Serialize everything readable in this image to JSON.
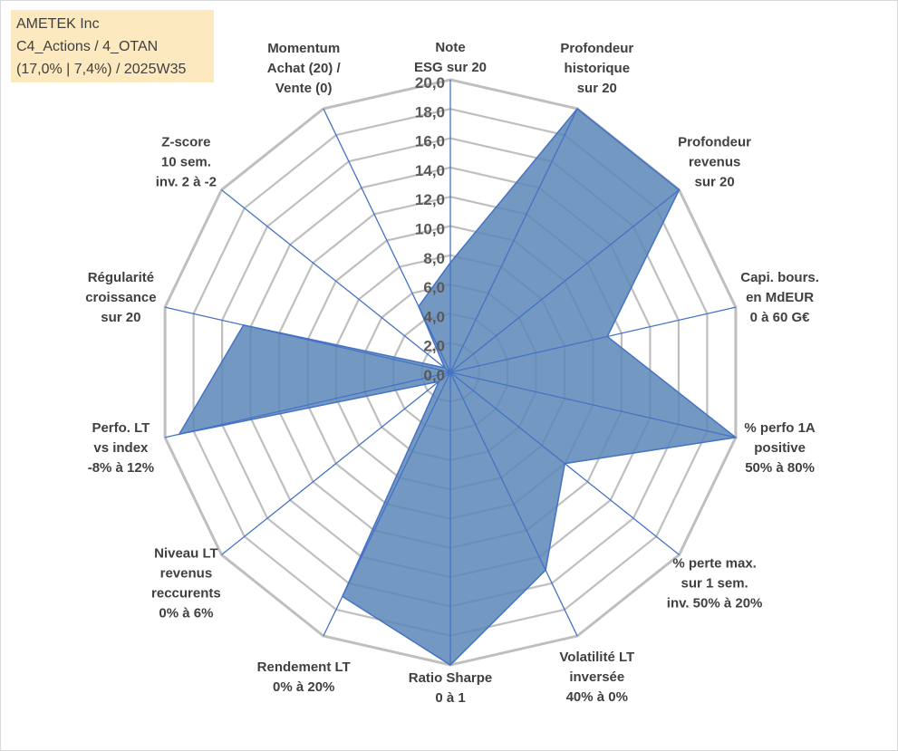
{
  "info": {
    "company": "AMETEK Inc",
    "category": "C4_Actions / 4_OTAN",
    "stats": "(17,0% | 7,4%) / 2025W35"
  },
  "chart_data": {
    "type": "radar",
    "r_min": 0,
    "r_max": 20,
    "r_step": 2,
    "tick_labels": [
      "0,0",
      "2,0",
      "4,0",
      "6,0",
      "8,0",
      "10,0",
      "12,0",
      "14,0",
      "16,0",
      "18,0",
      "20,0"
    ],
    "axes": [
      [
        "Note",
        "ESG sur 20"
      ],
      [
        "Profondeur",
        "historique",
        "sur 20"
      ],
      [
        "Profondeur",
        "revenus",
        "sur 20"
      ],
      [
        "Capi. bours.",
        "en MdEUR",
        "0 à 60 G€"
      ],
      [
        "% perfo 1A",
        "positive",
        "50% à 80%"
      ],
      [
        "% perte max.",
        "sur 1 sem.",
        "inv. 50% à 20%"
      ],
      [
        "Volatilité LT",
        "inversée",
        "40% à 0%"
      ],
      [
        "Ratio Sharpe",
        "0 à 1"
      ],
      [
        "Rendement LT",
        "0% à 20%"
      ],
      [
        "Niveau LT",
        "revenus",
        "reccurents",
        "0% à 6%"
      ],
      [
        "Perfo. LT",
        "vs index",
        "-8% à 12%"
      ],
      [
        "Régularité",
        "croissance",
        "sur 20"
      ],
      [
        "Z-score",
        "10 sem.",
        "inv. 2 à -2"
      ],
      [
        "Momentum",
        "Achat (20) /",
        "Vente (0)"
      ]
    ],
    "values": [
      7.5,
      20,
      20,
      11,
      20,
      10,
      15,
      20,
      17,
      1,
      19,
      14.5,
      0.5,
      5
    ],
    "grid": true,
    "fill_color": "#5a87b8",
    "line_color": "#4472c4",
    "grid_color": "#bfbfbf"
  }
}
